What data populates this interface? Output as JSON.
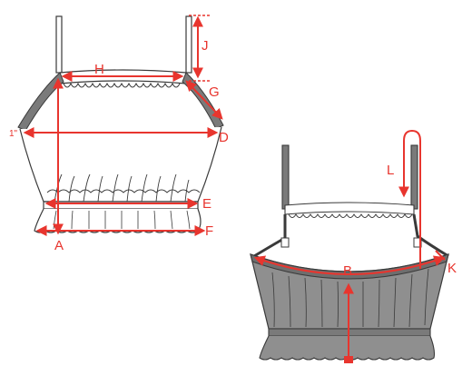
{
  "colors": {
    "measure": "#e8352e",
    "outline": "#3a3a3a",
    "fabric_back": "#8f8f8f",
    "strap": "#7a7a7a"
  },
  "front_view": {
    "labels": {
      "A": "A",
      "D": "D",
      "E": "E",
      "F": "F",
      "G": "G",
      "H": "H",
      "J": "J",
      "one_inch": "1\""
    }
  },
  "back_view": {
    "labels": {
      "B": "B",
      "K": "K",
      "L": "L"
    }
  }
}
